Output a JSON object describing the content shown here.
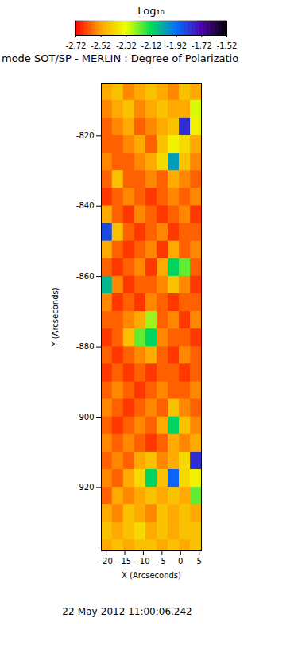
{
  "chart_data": {
    "type": "heatmap",
    "title": "mode SOT/SP - MERLIN : Degree of Polarizatio",
    "colorbar_label": "Log₁₀",
    "x_label": "X (Arcseconds)",
    "y_label": "Y (Arcseconds)",
    "date": "22-May-2012 11:00:06.242",
    "xlim": [
      -21.3,
      5.6
    ],
    "ylim": [
      -938,
      -805
    ],
    "xticks": [
      -20,
      -15,
      -10,
      -5,
      0,
      5
    ],
    "yticks": [
      -920,
      -900,
      -880,
      -860,
      -840,
      -820
    ],
    "colorbar_range": [
      -2.72,
      -1.52
    ],
    "colorbar_ticks": [
      -2.72,
      -2.52,
      -2.32,
      -2.12,
      -1.92,
      -1.72,
      -1.52
    ],
    "x_edges": [
      -21.3,
      -18.3,
      -15.3,
      -12.3,
      -9.3,
      -6.3,
      -3.3,
      -0.3,
      2.7,
      5.6
    ],
    "y_edges": [
      -805,
      -810,
      -815,
      -820,
      -825,
      -830,
      -835,
      -840,
      -845,
      -850,
      -855,
      -860,
      -865,
      -870,
      -875,
      -880,
      -885,
      -890,
      -895,
      -900,
      -905,
      -910,
      -915,
      -920,
      -925,
      -930,
      -935,
      -938
    ],
    "cells": [
      [
        -2.5,
        -2.45,
        -2.55,
        -2.5,
        -2.45,
        -2.5,
        -2.55,
        -2.45,
        -2.5
      ],
      [
        -2.55,
        -2.5,
        -2.45,
        -2.55,
        -2.5,
        -2.45,
        -2.5,
        -2.5,
        -2.3
      ],
      [
        -2.6,
        -2.55,
        -2.5,
        -2.6,
        -2.55,
        -2.5,
        -2.45,
        -1.8,
        -2.35
      ],
      [
        -2.6,
        -2.6,
        -2.55,
        -2.5,
        -2.6,
        -2.45,
        -2.35,
        -2.4,
        -2.5
      ],
      [
        -2.55,
        -2.6,
        -2.6,
        -2.55,
        -2.5,
        -2.4,
        -2.0,
        -2.45,
        -2.55
      ],
      [
        -2.6,
        -2.45,
        -2.6,
        -2.6,
        -2.55,
        -2.6,
        -2.5,
        -2.55,
        -2.6
      ],
      [
        -2.65,
        -2.6,
        -2.55,
        -2.6,
        -2.65,
        -2.6,
        -2.55,
        -2.6,
        -2.55
      ],
      [
        -2.5,
        -2.6,
        -2.65,
        -2.55,
        -2.6,
        -2.65,
        -2.6,
        -2.55,
        -2.65
      ],
      [
        -1.85,
        -2.45,
        -2.6,
        -2.65,
        -2.6,
        -2.55,
        -2.65,
        -2.6,
        -2.6
      ],
      [
        -2.5,
        -2.6,
        -2.65,
        -2.6,
        -2.55,
        -2.65,
        -2.5,
        -2.6,
        -2.55
      ],
      [
        -2.6,
        -2.65,
        -2.6,
        -2.55,
        -2.65,
        -2.5,
        -2.1,
        -2.2,
        -2.6
      ],
      [
        -2.05,
        -2.55,
        -2.65,
        -2.6,
        -2.6,
        -2.55,
        -2.45,
        -2.55,
        -2.65
      ],
      [
        -2.55,
        -2.65,
        -2.6,
        -2.65,
        -2.55,
        -2.6,
        -2.65,
        -2.6,
        -2.6
      ],
      [
        -2.6,
        -2.6,
        -2.55,
        -2.5,
        -2.25,
        -2.6,
        -2.55,
        -2.65,
        -2.55
      ],
      [
        -2.65,
        -2.6,
        -2.45,
        -2.2,
        -2.1,
        -2.55,
        -2.6,
        -2.6,
        -2.65
      ],
      [
        -2.6,
        -2.65,
        -2.6,
        -2.55,
        -2.5,
        -2.6,
        -2.65,
        -2.55,
        -2.6
      ],
      [
        -2.65,
        -2.6,
        -2.65,
        -2.6,
        -2.65,
        -2.6,
        -2.6,
        -2.65,
        -2.6
      ],
      [
        -2.6,
        -2.55,
        -2.6,
        -2.65,
        -2.6,
        -2.55,
        -2.6,
        -2.6,
        -2.55
      ],
      [
        -2.55,
        -2.6,
        -2.65,
        -2.6,
        -2.55,
        -2.6,
        -2.45,
        -2.55,
        -2.6
      ],
      [
        -2.6,
        -2.65,
        -2.6,
        -2.55,
        -2.6,
        -2.5,
        -2.1,
        -2.45,
        -2.55
      ],
      [
        -2.55,
        -2.6,
        -2.55,
        -2.6,
        -2.65,
        -2.6,
        -2.5,
        -2.55,
        -2.5
      ],
      [
        -2.6,
        -2.55,
        -2.6,
        -2.5,
        -2.45,
        -2.55,
        -2.5,
        -2.4,
        -1.8
      ],
      [
        -2.55,
        -2.6,
        -2.5,
        -2.4,
        -2.1,
        -2.45,
        -1.9,
        -2.4,
        -2.35
      ],
      [
        -2.6,
        -2.5,
        -2.55,
        -2.5,
        -2.45,
        -2.5,
        -2.45,
        -2.5,
        -2.2
      ],
      [
        -2.5,
        -2.55,
        -2.45,
        -2.5,
        -2.55,
        -2.45,
        -2.5,
        -2.45,
        -2.5
      ],
      [
        -2.45,
        -2.5,
        -2.45,
        -2.4,
        -2.5,
        -2.45,
        -2.5,
        -2.45,
        -2.45
      ],
      [
        -2.5,
        -2.45,
        -2.5,
        -2.45,
        -2.45,
        -2.5,
        -2.45,
        -2.5,
        -2.45
      ]
    ]
  }
}
